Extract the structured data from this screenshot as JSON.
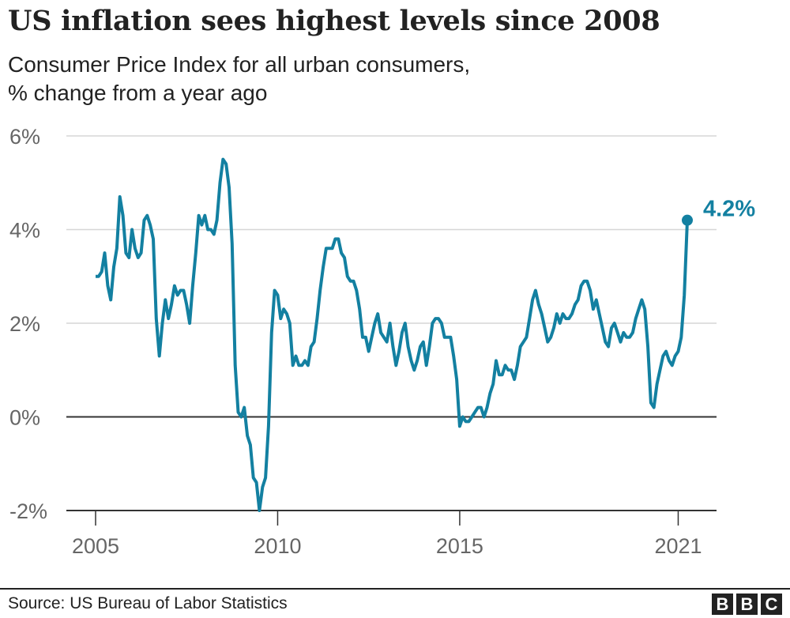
{
  "header": {
    "title": "US inflation sees highest levels since 2008",
    "subtitle_line1": "Consumer Price Index for all urban consumers,",
    "subtitle_line2": "% change from a year ago"
  },
  "footer": {
    "source": "Source: US Bureau of Labor Statistics",
    "logo_letters": [
      "B",
      "B",
      "C"
    ]
  },
  "chart_data": {
    "type": "line",
    "title": "US inflation sees highest levels since 2008",
    "subtitle": "Consumer Price Index for all urban consumers, % change from a year ago",
    "xlabel": "",
    "ylabel": "",
    "ylim": [
      -2,
      6
    ],
    "yticks": [
      6,
      4,
      2,
      0,
      -2
    ],
    "ytick_labels": [
      "6%",
      "4%",
      "2%",
      "0%",
      "-2%"
    ],
    "xticks": [
      2005,
      2010,
      2015,
      2021
    ],
    "xtick_labels": [
      "2005",
      "2010",
      "2015",
      "2021"
    ],
    "grid": true,
    "x_start": "2005-01",
    "x_end": "2021-04",
    "frequency": "monthly",
    "annotation": {
      "text": "4.2%",
      "x": "2021-04",
      "y": 4.2
    },
    "color": "#1380A1",
    "series": [
      {
        "values": [
          3.0,
          3.0,
          3.1,
          3.5,
          2.8,
          2.5,
          3.2,
          3.6,
          4.7,
          4.3,
          3.5,
          3.4,
          4.0,
          3.6,
          3.4,
          3.5,
          4.2,
          4.3,
          4.1,
          3.8,
          2.1,
          1.3,
          2.0,
          2.5,
          2.1,
          2.4,
          2.8,
          2.6,
          2.7,
          2.7,
          2.4,
          2.0,
          2.8,
          3.5,
          4.3,
          4.1,
          4.3,
          4.0,
          4.0,
          3.9,
          4.2,
          5.0,
          5.5,
          5.4,
          4.9,
          3.7,
          1.1,
          0.1,
          0.0,
          0.2,
          -0.4,
          -0.6,
          -1.3,
          -1.4,
          -2.0,
          -1.5,
          -1.3,
          -0.2,
          1.8,
          2.7,
          2.6,
          2.1,
          2.3,
          2.2,
          2.0,
          1.1,
          1.3,
          1.1,
          1.1,
          1.2,
          1.1,
          1.5,
          1.6,
          2.1,
          2.7,
          3.2,
          3.6,
          3.6,
          3.6,
          3.8,
          3.8,
          3.5,
          3.4,
          3.0,
          2.9,
          2.9,
          2.7,
          2.3,
          1.7,
          1.7,
          1.4,
          1.7,
          2.0,
          2.2,
          1.8,
          1.7,
          1.6,
          2.0,
          1.5,
          1.1,
          1.4,
          1.8,
          2.0,
          1.5,
          1.2,
          1.0,
          1.2,
          1.5,
          1.6,
          1.1,
          1.5,
          2.0,
          2.1,
          2.1,
          2.0,
          1.7,
          1.7,
          1.7,
          1.3,
          0.8,
          -0.2,
          0.0,
          -0.1,
          -0.1,
          0.0,
          0.1,
          0.2,
          0.2,
          0.0,
          0.2,
          0.5,
          0.7,
          1.2,
          0.9,
          0.9,
          1.1,
          1.0,
          1.0,
          0.8,
          1.1,
          1.5,
          1.6,
          1.7,
          2.1,
          2.5,
          2.7,
          2.4,
          2.2,
          1.9,
          1.6,
          1.7,
          1.9,
          2.2,
          2.0,
          2.2,
          2.1,
          2.1,
          2.2,
          2.4,
          2.5,
          2.8,
          2.9,
          2.9,
          2.7,
          2.3,
          2.5,
          2.2,
          1.9,
          1.6,
          1.5,
          1.9,
          2.0,
          1.8,
          1.6,
          1.8,
          1.7,
          1.7,
          1.8,
          2.1,
          2.3,
          2.5,
          2.3,
          1.5,
          0.3,
          0.2,
          0.7,
          1.0,
          1.3,
          1.4,
          1.2,
          1.1,
          1.3,
          1.4,
          1.7,
          2.6,
          4.2
        ]
      }
    ]
  }
}
